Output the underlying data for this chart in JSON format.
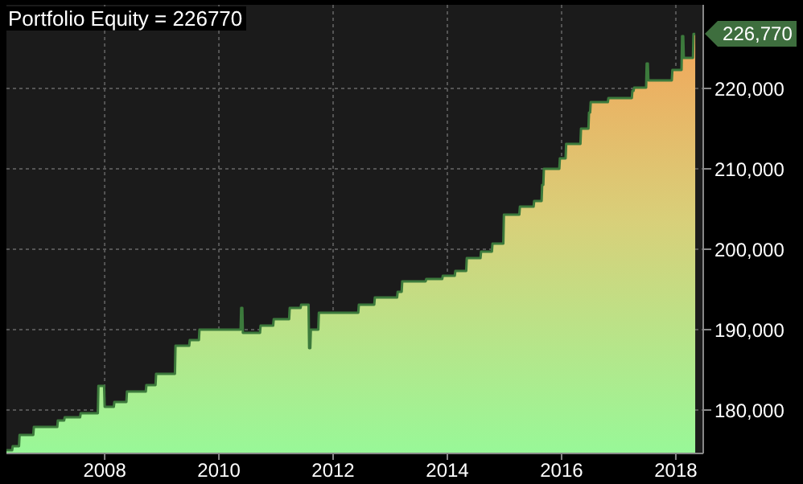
{
  "chart_data": {
    "type": "area",
    "title": "Portfolio Equity = 226770",
    "x": [
      2006.28,
      2006.38,
      2006.39,
      2006.5,
      2006.51,
      2006.75,
      2006.76,
      2007.17,
      2007.18,
      2007.29,
      2007.3,
      2007.57,
      2007.58,
      2007.88,
      2007.89,
      2007.99,
      2008.0,
      2008.16,
      2008.17,
      2008.38,
      2008.39,
      2008.72,
      2008.73,
      2008.89,
      2008.9,
      2009.23,
      2009.24,
      2009.48,
      2009.49,
      2009.65,
      2009.66,
      2010.38,
      2010.39,
      2010.41,
      2010.42,
      2010.72,
      2010.73,
      2010.95,
      2010.96,
      2011.23,
      2011.24,
      2011.43,
      2011.44,
      2011.57,
      2011.58,
      2011.6,
      2011.61,
      2011.74,
      2011.75,
      2012.44,
      2012.45,
      2012.72,
      2012.73,
      2013.12,
      2013.13,
      2013.2,
      2013.21,
      2013.62,
      2013.63,
      2013.91,
      2013.92,
      2014.13,
      2014.14,
      2014.33,
      2014.34,
      2014.58,
      2014.59,
      2014.78,
      2014.79,
      2014.98,
      2014.99,
      2015.26,
      2015.27,
      2015.51,
      2015.52,
      2015.65,
      2015.66,
      2015.68,
      2015.69,
      2015.96,
      2015.97,
      2016.07,
      2016.08,
      2016.33,
      2016.34,
      2016.47,
      2016.48,
      2016.5,
      2016.51,
      2016.81,
      2016.82,
      2017.23,
      2017.24,
      2017.26,
      2017.27,
      2017.48,
      2017.49,
      2017.51,
      2017.52,
      2017.93,
      2017.94,
      2018.1,
      2018.11,
      2018.13,
      2018.14,
      2018.3,
      2018.31,
      2018.34
    ],
    "series": [
      {
        "color": "#3c7a3c",
        "values": [
          175000,
          175000,
          175500,
          175500,
          176900,
          176900,
          177900,
          177900,
          178700,
          178700,
          179100,
          179100,
          179600,
          179600,
          183000,
          183000,
          180400,
          180400,
          181000,
          181000,
          182300,
          182300,
          183100,
          183100,
          184500,
          184500,
          188000,
          188000,
          188700,
          188700,
          190000,
          190000,
          192700,
          192700,
          189600,
          189600,
          190500,
          190500,
          191300,
          191300,
          192700,
          192700,
          193100,
          193100,
          187700,
          187700,
          190000,
          190000,
          192100,
          192100,
          193100,
          193100,
          194000,
          194000,
          194700,
          194700,
          196000,
          196000,
          196300,
          196300,
          196700,
          196700,
          197300,
          197300,
          198900,
          198900,
          199700,
          199700,
          200700,
          200700,
          204300,
          204300,
          205300,
          205300,
          206000,
          206000,
          208000,
          208000,
          210000,
          210000,
          211300,
          211300,
          213100,
          213100,
          215000,
          215000,
          217000,
          217000,
          218300,
          218300,
          218800,
          218800,
          219700,
          219700,
          220100,
          220100,
          223100,
          223100,
          221000,
          221000,
          222300,
          222300,
          226500,
          226500,
          223800,
          223800,
          226770,
          226770
        ]
      }
    ],
    "annotations": [
      {
        "text": "226,770",
        "x": 2018.34,
        "y": 226770
      }
    ],
    "xlim": [
      2006.28,
      2018.48
    ],
    "xticks": [
      2008,
      2010,
      2012,
      2014,
      2016,
      2018
    ],
    "ylim": [
      174600,
      230400
    ],
    "yticks": [
      {
        "value": 180000,
        "label": "180,000"
      },
      {
        "value": 190000,
        "label": "190,000"
      },
      {
        "value": 200000,
        "label": "200,000"
      },
      {
        "value": 210000,
        "label": "210,000"
      },
      {
        "value": 220000,
        "label": "220,000"
      }
    ],
    "grid": true
  }
}
